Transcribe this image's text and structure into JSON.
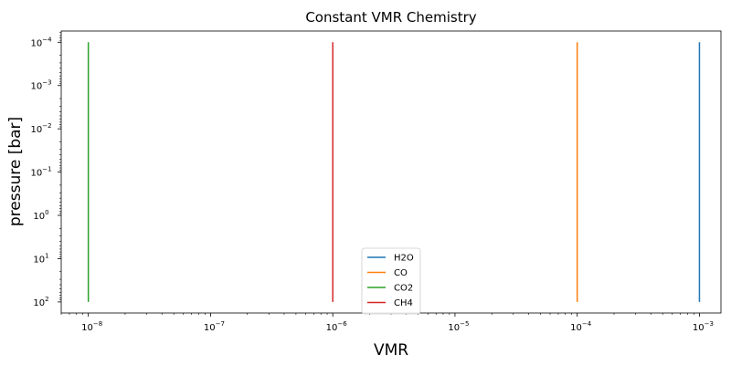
{
  "chart_data": {
    "type": "line",
    "title": "Constant VMR Chemistry",
    "xlabel": "VMR",
    "ylabel": "pressure [bar]",
    "xscale": "log",
    "yscale": "log",
    "y_inverted": true,
    "xlim": [
      6e-09,
      0.0015
    ],
    "ylim": [
      180,
      5.5e-05
    ],
    "x_ticks": [
      1e-08,
      1e-07,
      1e-06,
      1e-05,
      0.0001,
      0.001
    ],
    "y_ticks": [
      0.0001,
      0.001,
      0.01,
      0.1,
      1.0,
      10.0,
      100.0
    ],
    "grid": false,
    "legend_position": "lower center",
    "series": [
      {
        "name": "H2O",
        "color": "#1f77b4",
        "x": [
          0.001,
          0.001
        ],
        "y": [
          0.0001,
          100.0
        ]
      },
      {
        "name": "CO",
        "color": "#ff7f0e",
        "x": [
          0.0001,
          0.0001
        ],
        "y": [
          0.0001,
          100.0
        ]
      },
      {
        "name": "CO2",
        "color": "#2ca02c",
        "x": [
          1e-08,
          1e-08
        ],
        "y": [
          0.0001,
          100.0
        ]
      },
      {
        "name": "CH4",
        "color": "#d62728",
        "x": [
          1e-06,
          1e-06
        ],
        "y": [
          0.0001,
          100.0
        ]
      }
    ]
  }
}
